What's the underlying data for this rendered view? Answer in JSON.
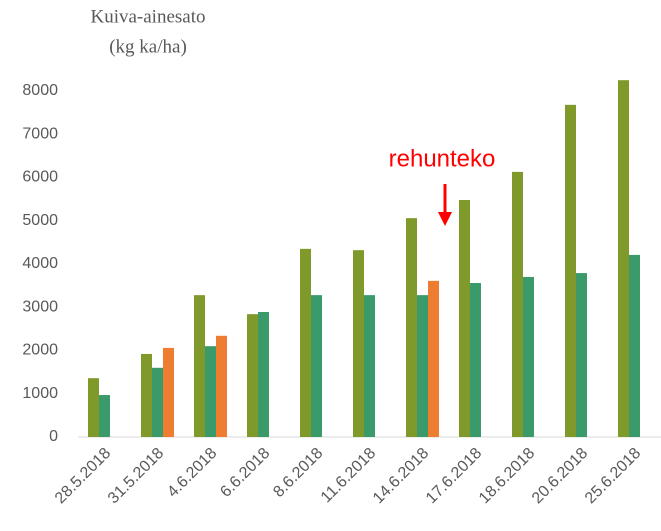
{
  "chart_data": {
    "type": "bar",
    "ylabel": [
      "Kuiva-ainesato",
      "(kg ka/ha)"
    ],
    "annotation": "rehunteko",
    "categories": [
      "28.5.2018",
      "31.5.2018",
      "4.6.2018",
      "6.6.2018",
      "8.6.2018",
      "11.6.2018",
      "14.6.2018",
      "17.6.2018",
      "18.6.2018",
      "20.6.2018",
      "25.6.2018"
    ],
    "series": [
      {
        "color": "#7f9a2b",
        "values": [
          1360,
          1920,
          3280,
          2840,
          4350,
          4320,
          5060,
          5480,
          6130,
          7680,
          8250
        ]
      },
      {
        "color": "#3a9a6a",
        "values": [
          970,
          1600,
          2100,
          2890,
          3280,
          3280,
          3280,
          3560,
          3700,
          3790,
          4210
        ]
      },
      {
        "color": "#ee7d31",
        "values": [
          null,
          2060,
          2340,
          null,
          null,
          null,
          3610,
          null,
          null,
          null,
          null
        ]
      }
    ],
    "ylim": [
      0,
      8000
    ],
    "yticks": [
      0,
      1000,
      2000,
      3000,
      4000,
      5000,
      6000,
      7000,
      8000
    ],
    "grid": false
  }
}
